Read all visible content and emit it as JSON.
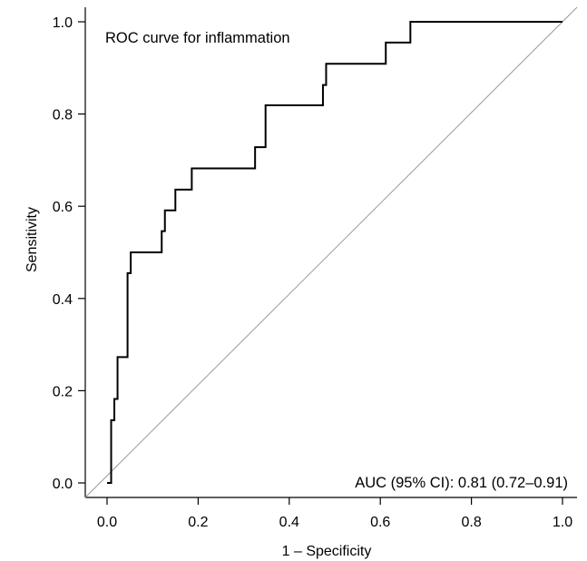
{
  "chart_data": {
    "type": "line",
    "title": "",
    "xlabel": "1 – Specificity",
    "ylabel": "Sensitivity",
    "xlim": [
      0.0,
      1.0
    ],
    "ylim": [
      0.0,
      1.0
    ],
    "x_ticks": [
      "0.0",
      "0.2",
      "0.4",
      "0.6",
      "0.8",
      "1.0"
    ],
    "y_ticks": [
      "0.0",
      "0.2",
      "0.4",
      "0.6",
      "0.8",
      "1.0"
    ],
    "grid": false,
    "annotations": {
      "curve_label": "ROC curve for inflammation",
      "auc": "AUC (95% CI): 0.81 (0.72–0.91)"
    },
    "reference_line": {
      "x": [
        0,
        1
      ],
      "y": [
        0,
        1
      ]
    },
    "series": [
      {
        "x": [
          0.0,
          0.0,
          0.009,
          0.009,
          0.016,
          0.016,
          0.023,
          0.023,
          0.045,
          0.045,
          0.052,
          0.052,
          0.12,
          0.12,
          0.127,
          0.127,
          0.15,
          0.15,
          0.186,
          0.186,
          0.325,
          0.325,
          0.348,
          0.348,
          0.474,
          0.474,
          0.481,
          0.481,
          0.612,
          0.612,
          0.666,
          0.666,
          1.0
        ],
        "y": [
          0.0,
          0.0,
          0.0,
          0.136,
          0.136,
          0.182,
          0.182,
          0.273,
          0.273,
          0.455,
          0.455,
          0.5,
          0.5,
          0.546,
          0.546,
          0.591,
          0.591,
          0.636,
          0.636,
          0.682,
          0.682,
          0.728,
          0.728,
          0.819,
          0.819,
          0.863,
          0.863,
          0.909,
          0.909,
          0.955,
          0.955,
          1.0,
          1.0
        ]
      }
    ],
    "colors": {
      "curve": "#000000",
      "reference": "#9a9a9a",
      "axis": "#000000"
    }
  }
}
